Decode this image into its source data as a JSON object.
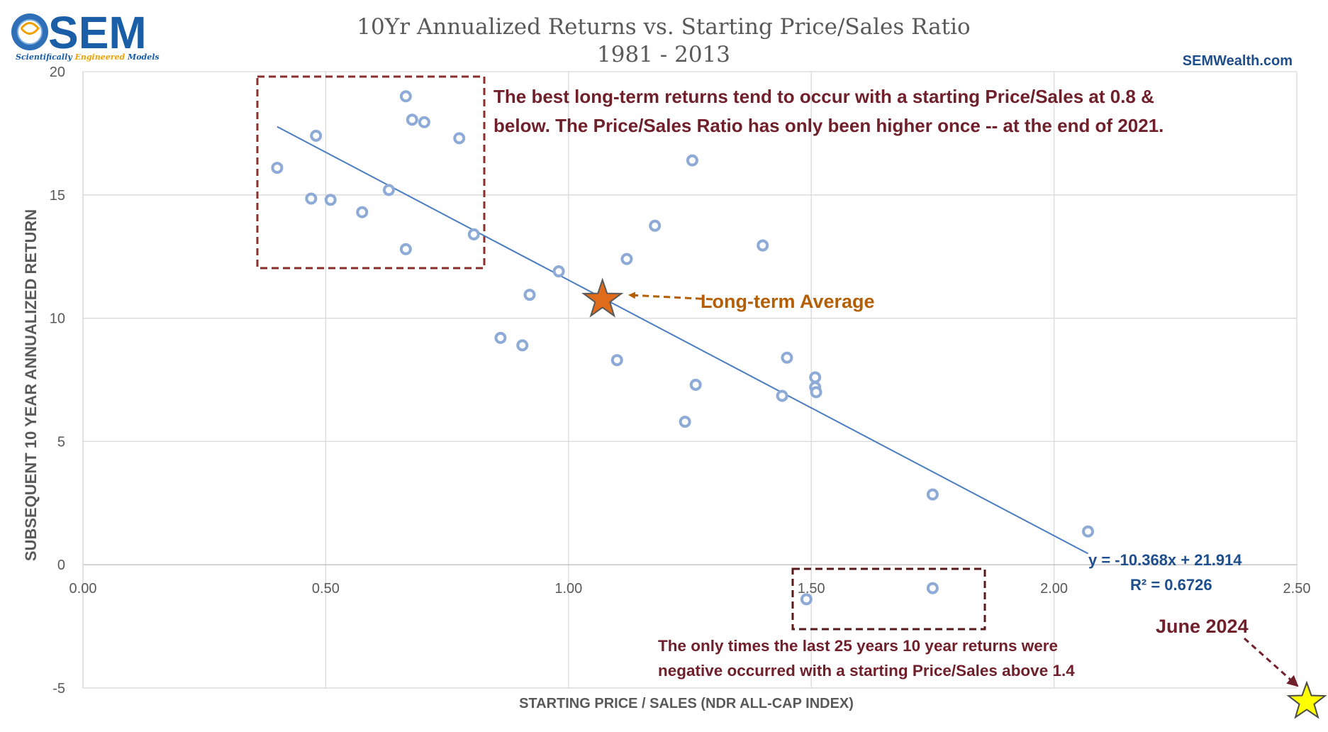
{
  "logo": {
    "name": "SEM",
    "tagline_parts": [
      "Scientifically ",
      "Engineered",
      " Models"
    ]
  },
  "website": "SEMWealth.com",
  "colors": {
    "point": "#8eaad6",
    "trend": "#4a7cc0",
    "annotation_dark": "#70202a",
    "annotation_orange": "#b45f06",
    "equation": "#1f4e8c",
    "grid": "#d9d9d9",
    "average_star": "#e06c1b",
    "june_star": "#ffff00",
    "brand_blue": "#1a5ea8"
  },
  "chart_data": {
    "type": "scatter",
    "title": "10Yr Annualized Returns vs. Starting Price/Sales Ratio",
    "subtitle": "1981 - 2013",
    "xlabel": "STARTING PRICE / SALES (NDR ALL-CAP INDEX)",
    "ylabel": "SUBSEQUENT 10 YEAR ANNUALIZED RETURN",
    "xlim": [
      0,
      2.5
    ],
    "ylim": [
      -5,
      20
    ],
    "x_ticks": [
      0,
      0.5,
      1,
      1.5,
      2,
      2.5
    ],
    "x_tick_labels": [
      "0.00",
      "0.50",
      "1.00",
      "1.50",
      "2.00",
      "2.50"
    ],
    "y_ticks": [
      -5,
      0,
      5,
      10,
      15,
      20
    ],
    "y_tick_labels": [
      "-5",
      "0",
      "5",
      "10",
      "15",
      "20"
    ],
    "grid": true,
    "points": [
      {
        "x": 0.4,
        "y": 16.1
      },
      {
        "x": 0.47,
        "y": 14.85
      },
      {
        "x": 0.48,
        "y": 17.4
      },
      {
        "x": 0.51,
        "y": 14.8
      },
      {
        "x": 0.575,
        "y": 14.3
      },
      {
        "x": 0.63,
        "y": 15.2
      },
      {
        "x": 0.665,
        "y": 19.0
      },
      {
        "x": 0.665,
        "y": 12.8
      },
      {
        "x": 0.678,
        "y": 18.05
      },
      {
        "x": 0.703,
        "y": 17.95
      },
      {
        "x": 0.775,
        "y": 17.3
      },
      {
        "x": 0.805,
        "y": 13.4
      },
      {
        "x": 0.86,
        "y": 9.2
      },
      {
        "x": 0.905,
        "y": 8.9
      },
      {
        "x": 0.92,
        "y": 10.95
      },
      {
        "x": 0.98,
        "y": 11.9
      },
      {
        "x": 1.1,
        "y": 8.3
      },
      {
        "x": 1.12,
        "y": 12.4
      },
      {
        "x": 1.178,
        "y": 13.75
      },
      {
        "x": 1.24,
        "y": 5.8
      },
      {
        "x": 1.255,
        "y": 16.4
      },
      {
        "x": 1.262,
        "y": 7.3
      },
      {
        "x": 1.4,
        "y": 12.95
      },
      {
        "x": 1.44,
        "y": 6.85
      },
      {
        "x": 1.45,
        "y": 8.4
      },
      {
        "x": 1.49,
        "y": -1.4
      },
      {
        "x": 1.508,
        "y": 7.6
      },
      {
        "x": 1.508,
        "y": 7.2
      },
      {
        "x": 1.51,
        "y": 7.0
      },
      {
        "x": 1.75,
        "y": 2.85
      },
      {
        "x": 1.75,
        "y": -0.95
      },
      {
        "x": 2.07,
        "y": 1.35
      }
    ],
    "trendline": {
      "slope": -10.368,
      "intercept": 21.914,
      "x_start": 0.4,
      "x_end": 2.07
    },
    "equation_label": "y = -10.368x + 21.914",
    "r2_label": "R² = 0.6726",
    "long_term_average": {
      "x": 1.07,
      "y": 10.75,
      "label": "Long-term Average"
    },
    "june_2024": {
      "x": 2.5,
      "y": -5.5,
      "label": "June 2024"
    },
    "annotations": {
      "best_returns_lines": [
        "The best long-term returns tend to occur with a starting Price/Sales at 0.8 &",
        "below. The Price/Sales Ratio has only been higher once -- at the end of 2021."
      ],
      "negative_returns_lines": [
        "The only times the last 25 years 10 year returns were",
        "negative occurred with a starting Price/Sales above 1.4"
      ]
    }
  }
}
